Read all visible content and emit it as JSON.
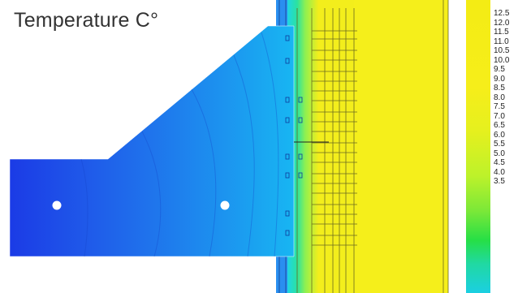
{
  "title": "Temperature C°",
  "colors": {
    "cold": "#1e3ee8",
    "warm": "#f2ee18",
    "background": "#ffffff"
  },
  "scale": {
    "unit": "C°",
    "ticks": [
      "12.5",
      "12.0",
      "11.5",
      "11.0",
      "10.5",
      "10.0",
      "9.5",
      "9.0",
      "8.5",
      "8.0",
      "7.5",
      "7.0",
      "6.5",
      "6.0",
      "5.5",
      "5.0",
      "4.5",
      "4.0",
      "3.5"
    ]
  }
}
